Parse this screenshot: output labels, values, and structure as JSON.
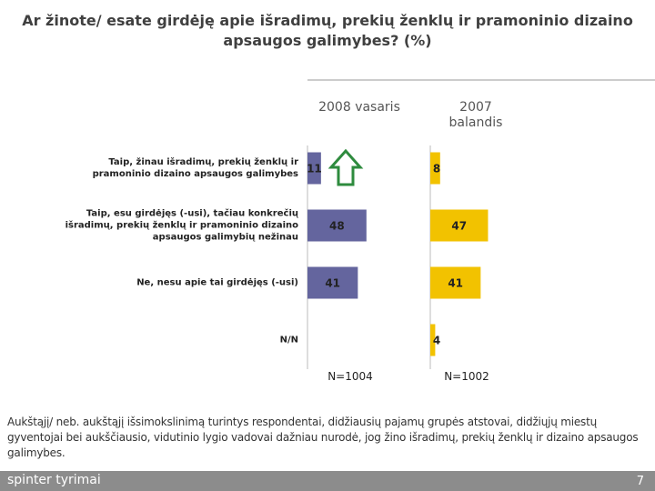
{
  "chart_data": {
    "type": "bar",
    "title": "Ar žinote/ esate girdėję apie išradimų, prekių ženklų ir pramoninio dizaino apsaugos galimybes? (%)",
    "categories": [
      "Taip, žinau išradimų, prekių ženklų ir pramoninio dizaino apsaugos galimybes",
      "Taip, esu girdėjęs (-usi), tačiau konkrečių išradimų, prekių ženklų ir pramoninio dizaino apsaugos galimybių nežinau",
      "Ne, nesu apie tai girdėjęs (-usi)",
      "N/N"
    ],
    "series": [
      {
        "name": "2008 vasaris",
        "color": "#64659e",
        "values": [
          11,
          48,
          41,
          null
        ],
        "sample": "N=1004"
      },
      {
        "name": "2007 balandis",
        "color": "#f2c200",
        "values": [
          8,
          47,
          41,
          4
        ],
        "sample": "N=1002"
      }
    ]
  },
  "footnote": "Aukštąjį/ neb. aukštąjį išsimokslinimą turintys respondentai, didžiausių pajamų grupės atstovai, didžiųjų miestų gyventojai bei aukščiausio, vidutinio lygio vadovai dažniau nurodė, jog žino išradimų, prekių ženklų ir dizaino apsaugos galimybes.",
  "footer": {
    "brand": "spinter tyrimai",
    "page": "7"
  }
}
